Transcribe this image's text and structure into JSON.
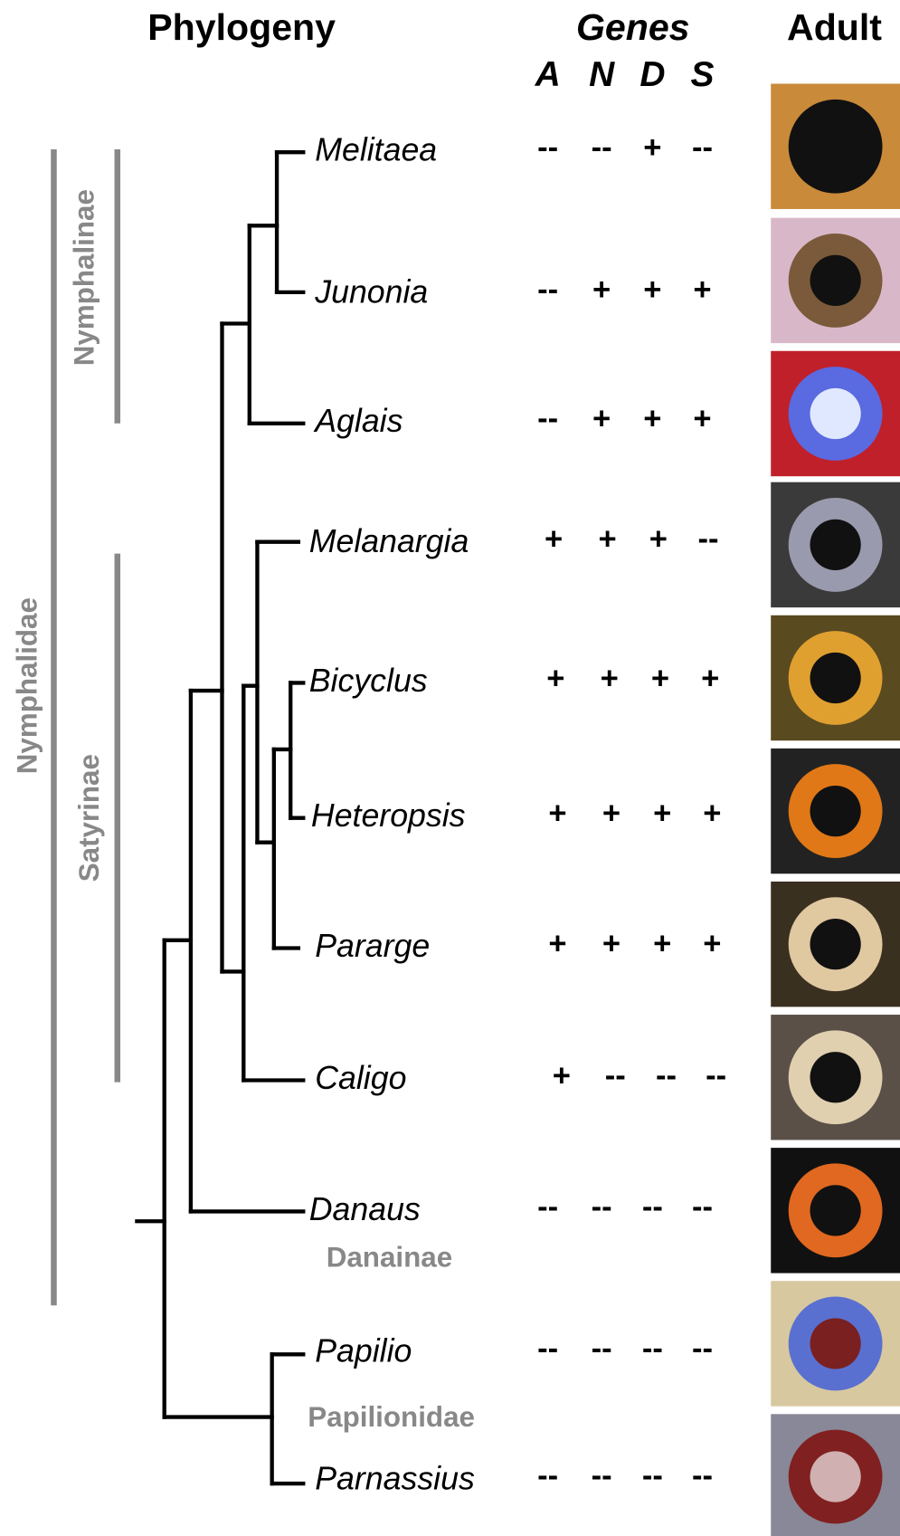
{
  "header": {
    "phylogeny": "Phylogeny",
    "genes": "Genes",
    "adult": "Adult"
  },
  "gene_columns": [
    "A",
    "N",
    "D",
    "S"
  ],
  "taxa": [
    {
      "name": "Melitaea",
      "genes": [
        "--",
        "--",
        "+",
        "--"
      ]
    },
    {
      "name": "Junonia",
      "genes": [
        "--",
        "+",
        "+",
        "+"
      ]
    },
    {
      "name": "Aglais",
      "genes": [
        "--",
        "+",
        "+",
        "+"
      ]
    },
    {
      "name": "Melanargia",
      "genes": [
        "+",
        "+",
        "+",
        "--"
      ]
    },
    {
      "name": "Bicyclus",
      "genes": [
        "+",
        "+",
        "+",
        "+"
      ]
    },
    {
      "name": "Heteropsis",
      "genes": [
        "+",
        "+",
        "+",
        "+"
      ]
    },
    {
      "name": "Pararge",
      "genes": [
        "+",
        "+",
        "+",
        "+"
      ]
    },
    {
      "name": "Caligo",
      "genes": [
        "+",
        "--",
        "--",
        "--"
      ]
    },
    {
      "name": "Danaus",
      "genes": [
        "--",
        "--",
        "--",
        "--"
      ]
    },
    {
      "name": "Papilio",
      "genes": [
        "--",
        "--",
        "--",
        "--"
      ]
    },
    {
      "name": "Parnassius",
      "genes": [
        "--",
        "--",
        "--",
        "--"
      ]
    }
  ],
  "groups": {
    "nymphalinae": "Nymphalinae",
    "satyrinae": "Satyrinae",
    "nymphalidae": "Nymphalidae",
    "danainae": "Danainae",
    "papilionidae": "Papilionidae"
  }
}
